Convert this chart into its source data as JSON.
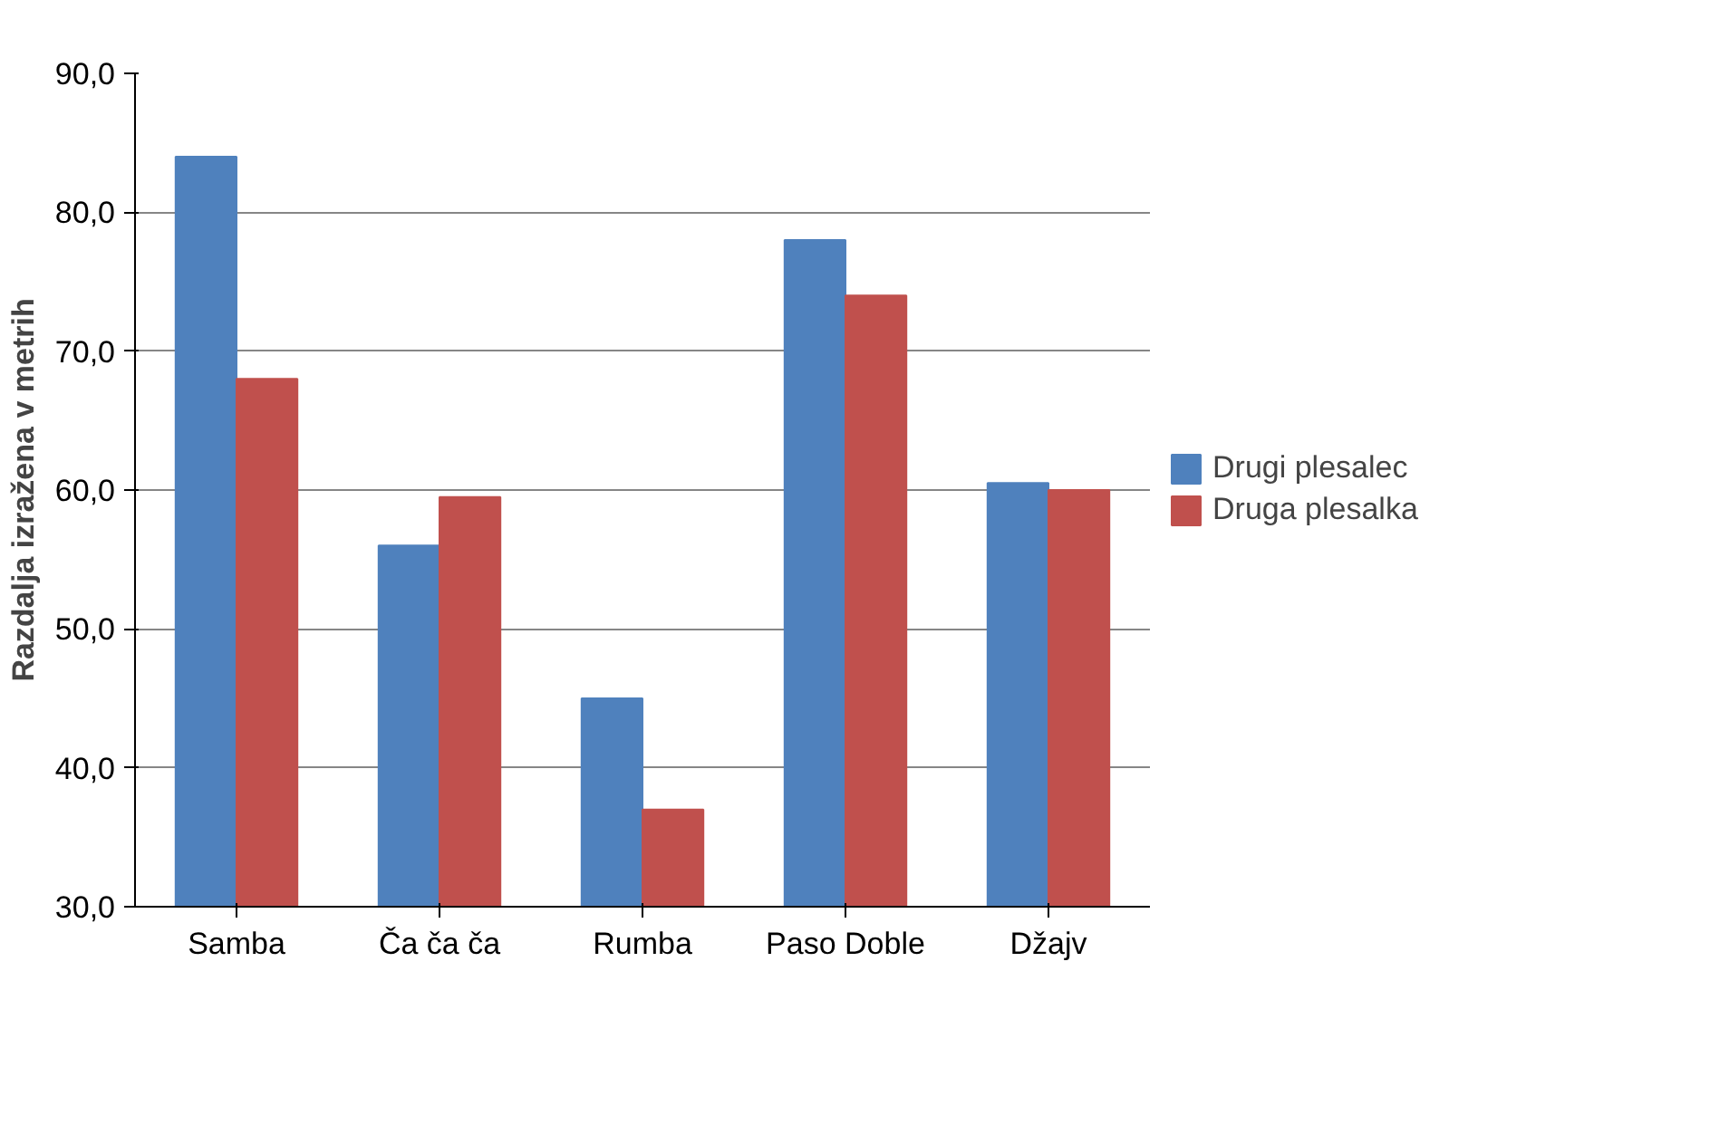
{
  "chart_data": {
    "type": "bar",
    "ylabel": "Razdalja izražena v metrih",
    "categories": [
      "Samba",
      "Ča ča ča",
      "Rumba",
      "Paso Doble",
      "Džajv"
    ],
    "series": [
      {
        "name": "Drugi plesalec",
        "color": "#4f81bd",
        "values": [
          84,
          56,
          45,
          78,
          60.5
        ]
      },
      {
        "name": "Druga plesalka",
        "color": "#c0504d",
        "values": [
          68,
          59.5,
          37,
          74,
          60
        ]
      }
    ],
    "ylim": [
      30,
      90
    ],
    "yticks": [
      {
        "value": 30,
        "label": "30,0"
      },
      {
        "value": 40,
        "label": "40,0"
      },
      {
        "value": 50,
        "label": "50,0"
      },
      {
        "value": 60,
        "label": "60,0"
      },
      {
        "value": 70,
        "label": "70,0"
      },
      {
        "value": 80,
        "label": "80,0"
      },
      {
        "value": 90,
        "label": "90,0"
      }
    ],
    "grid": "y",
    "legend": "right"
  }
}
